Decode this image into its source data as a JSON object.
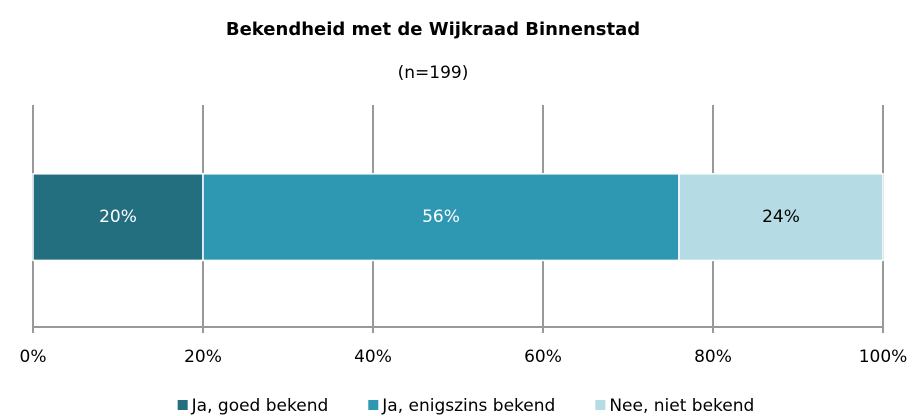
{
  "chart_data": {
    "type": "stacked_barh",
    "title": "Bekendheid met de Wijkraad Binnenstad",
    "subtitle": "(n=199)",
    "categories": [
      null
    ],
    "series": [
      {
        "name": "Ja, goed bekend",
        "color": "#236f80",
        "values": [
          20
        ],
        "value_labels": [
          "20%"
        ]
      },
      {
        "name": "Ja, enigszins bekend",
        "color": "#2e98b3",
        "values": [
          56
        ],
        "value_labels": [
          "56%"
        ]
      },
      {
        "name": "Nee, niet bekend",
        "color": "#b5dce4",
        "values": [
          24
        ],
        "value_labels": [
          "24%"
        ]
      }
    ],
    "xlim": [
      0,
      100
    ],
    "xticks": [
      {
        "value": 0,
        "label": "0%"
      },
      {
        "value": 20,
        "label": "20%"
      },
      {
        "value": 40,
        "label": "40%"
      },
      {
        "value": 60,
        "label": "60%"
      },
      {
        "value": 80,
        "label": "80%"
      },
      {
        "value": 100,
        "label": "100%"
      }
    ],
    "grid": true,
    "legend": "bottom"
  }
}
